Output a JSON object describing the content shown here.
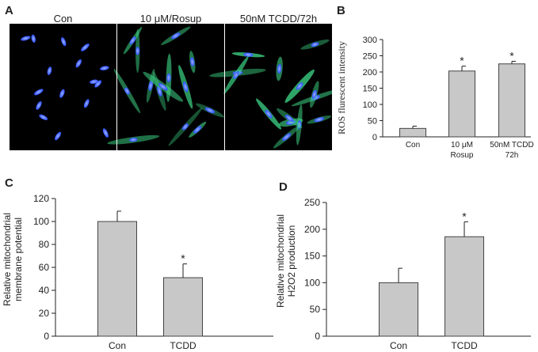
{
  "panel_letters": {
    "a": "A",
    "b": "B",
    "c": "C",
    "d": "D"
  },
  "micrographs": {
    "labels": [
      "Con",
      "10 μM/Rosup",
      "50nM TCDD/72h"
    ],
    "description_colors": {
      "nuclei": "#2a4cff",
      "ros": "#3fdc8a",
      "background": "#000000"
    },
    "green_signal": [
      0.0,
      0.8,
      0.9
    ]
  },
  "colors": {
    "bar_fill": "#c8c8c8",
    "bar_stroke": "#444444",
    "axis": "#222222"
  },
  "chart_data": [
    {
      "id": "B",
      "type": "bar",
      "categories": [
        [
          "Con"
        ],
        [
          "10 μM",
          "Rosup"
        ],
        [
          "50nM TCDD",
          "72h"
        ]
      ],
      "values": [
        26,
        203,
        225
      ],
      "errors": [
        7,
        15,
        8
      ],
      "significance": [
        "",
        "*",
        "*"
      ],
      "ylabel": "ROS flurescent intensity",
      "ylim": [
        0,
        300
      ],
      "yticks": [
        "0",
        "50",
        "100",
        "150",
        "200",
        "250",
        "300"
      ],
      "title": "",
      "xlabel": ""
    },
    {
      "id": "C",
      "type": "bar",
      "categories": [
        [
          "Con"
        ],
        [
          "TCDD"
        ]
      ],
      "values": [
        100,
        51
      ],
      "errors": [
        9,
        12
      ],
      "significance": [
        "",
        "*"
      ],
      "ylabel": [
        "Relative mitochondrial",
        "membrane potential"
      ],
      "ylim": [
        0,
        120
      ],
      "yticks": [
        "0",
        "20",
        "40",
        "60",
        "80",
        "100",
        "120"
      ],
      "title": "",
      "xlabel": ""
    },
    {
      "id": "D",
      "type": "bar",
      "categories": [
        [
          "Con"
        ],
        [
          "TCDD"
        ]
      ],
      "values": [
        100,
        186
      ],
      "errors": [
        27,
        28
      ],
      "significance": [
        "",
        "*"
      ],
      "ylabel": [
        "Relative mitochondrial",
        "H2O2 production"
      ],
      "ylim": [
        0,
        250
      ],
      "yticks": [
        "0",
        "50",
        "100",
        "150",
        "200",
        "250"
      ],
      "title": "",
      "xlabel": ""
    }
  ]
}
